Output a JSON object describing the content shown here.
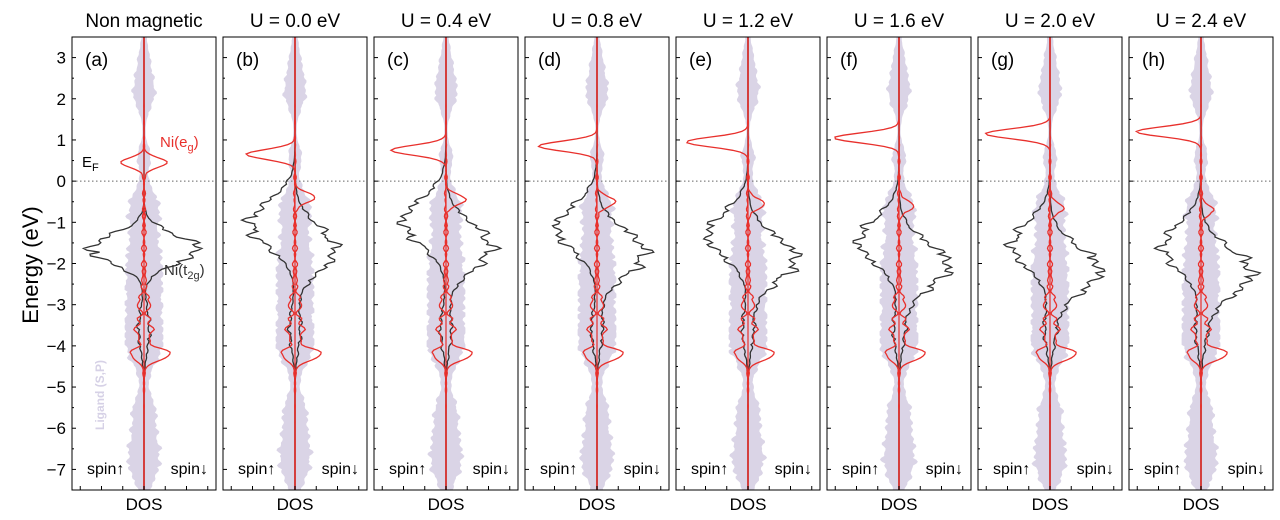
{
  "chart_data": {
    "type": "area",
    "figure": "Spin-resolved density of states vs. Hubbard U",
    "ylabel": "Energy (eV)",
    "xlabel": "DOS",
    "ylim": [
      -7.5,
      3.5
    ],
    "yticks": [
      3,
      2,
      1,
      0,
      -1,
      -2,
      -3,
      -4,
      -5,
      -6,
      -7
    ],
    "fermi_level_eV": 0,
    "fermi_label": {
      "main": "E",
      "sub": "F"
    },
    "spin_up_label": "spin↑",
    "spin_down_label": "spin↓",
    "annotations": {
      "eg": {
        "main": "Ni(e",
        "sub": "g",
        "tail": ")",
        "color": "#e8302c"
      },
      "t2g": {
        "main": "Ni(t",
        "sub": "2g",
        "tail": ")",
        "color": "#333333"
      },
      "ligand": {
        "text": "Ligand (S,P)",
        "color": "#d6d1e6"
      }
    },
    "series_colors": {
      "eg": "#e8302c",
      "t2g": "#333333",
      "ligand": "#cdc6de"
    },
    "panels": [
      {
        "label": "(a)",
        "title": "Non magnetic",
        "U": null,
        "eg_up_peak": 0.45,
        "eg_up_amp": 0.35,
        "eg_down_peak": 0.45,
        "eg_down_amp": 0.35,
        "t2g_center": -1.65,
        "t2g_up_amp": 1.0,
        "t2g_down_amp": 1.0
      },
      {
        "label": "(b)",
        "title": "U = 0.0 eV",
        "U": 0.0,
        "eg_up_peak": 0.65,
        "eg_up_amp": 0.75,
        "eg_down_peak": -0.4,
        "eg_down_amp": 0.3,
        "t2g_center": -1.3,
        "t2g_up_amp": 0.85,
        "t2g_down_amp": 0.75
      },
      {
        "label": "(c)",
        "title": "U = 0.4 eV",
        "U": 0.4,
        "eg_up_peak": 0.75,
        "eg_up_amp": 0.85,
        "eg_down_peak": -0.45,
        "eg_down_amp": 0.3,
        "t2g_center": -1.25,
        "t2g_up_amp": 0.8,
        "t2g_down_amp": 0.85
      },
      {
        "label": "(d)",
        "title": "U = 0.8 eV",
        "U": 0.8,
        "eg_up_peak": 0.85,
        "eg_up_amp": 0.9,
        "eg_down_peak": -0.5,
        "eg_down_amp": 0.28,
        "t2g_center": -1.4,
        "t2g_up_amp": 0.75,
        "t2g_down_amp": 0.9
      },
      {
        "label": "(e)",
        "title": "U = 1.2 eV",
        "U": 1.2,
        "eg_up_peak": 0.95,
        "eg_up_amp": 0.95,
        "eg_down_peak": -0.55,
        "eg_down_amp": 0.25,
        "t2g_center": -1.55,
        "t2g_up_amp": 0.75,
        "t2g_down_amp": 0.9
      },
      {
        "label": "(f)",
        "title": "U = 1.6 eV",
        "U": 1.6,
        "eg_up_peak": 1.05,
        "eg_up_amp": 1.0,
        "eg_down_peak": -0.6,
        "eg_down_amp": 0.22,
        "t2g_center": -1.7,
        "t2g_up_amp": 0.75,
        "t2g_down_amp": 0.92
      },
      {
        "label": "(g)",
        "title": "U = 2.0 eV",
        "U": 2.0,
        "eg_up_peak": 1.15,
        "eg_up_amp": 1.0,
        "eg_down_peak": -0.65,
        "eg_down_amp": 0.2,
        "t2g_center": -1.8,
        "t2g_up_amp": 0.72,
        "t2g_down_amp": 0.92
      },
      {
        "label": "(h)",
        "title": "U = 2.4 eV",
        "U": 2.4,
        "eg_up_peak": 1.2,
        "eg_up_amp": 1.0,
        "eg_down_peak": -0.7,
        "eg_down_amp": 0.18,
        "t2g_center": -1.85,
        "t2g_up_amp": 0.72,
        "t2g_down_amp": 0.95
      }
    ]
  }
}
